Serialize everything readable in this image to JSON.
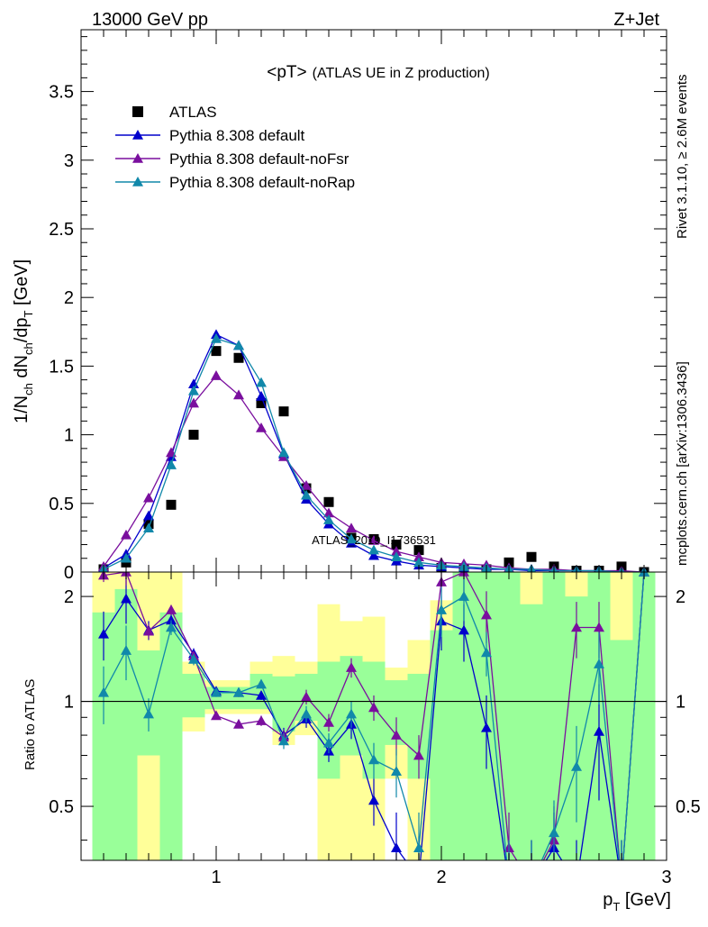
{
  "header": {
    "left": "13000 GeV pp",
    "right": "Z+Jet",
    "plot_title": "<pT>",
    "plot_subtitle": "(ATLAS UE in Z production)",
    "side_top": "Rivet 3.1.10, ≥ 2.6M events",
    "side_bottom": "mcplots.cern.ch [arXiv:1306.3436]",
    "watermark": "ATLAS_2019_I1736531"
  },
  "colors": {
    "atlas": "#000000",
    "default": "#0000cc",
    "noFsr": "#7a0f9e",
    "noRap": "#1188aa",
    "band_yellow": "#ffff99",
    "band_green": "#99ff99"
  },
  "chart_data": [
    {
      "type": "scatter",
      "title": "<pT> (ATLAS UE in Z production)",
      "xlabel": "p_T [GeV]",
      "ylabel": "1/N_ch dN_ch/dp_T [GeV]",
      "xlim": [
        0.4,
        3.0
      ],
      "ylim": [
        0,
        3.95
      ],
      "y_ticks": [
        "0",
        "0.5",
        "1",
        "1.5",
        "2",
        "2.5",
        "3",
        "3.5"
      ],
      "legend_position": "top-left",
      "x": [
        0.5,
        0.6,
        0.7,
        0.8,
        0.9,
        1.0,
        1.1,
        1.2,
        1.3,
        1.4,
        1.5,
        1.6,
        1.7,
        1.8,
        1.9,
        2.0,
        2.1,
        2.2,
        2.3,
        2.4,
        2.5,
        2.6,
        2.7,
        2.8,
        2.9
      ],
      "series": [
        {
          "name": "ATLAS",
          "marker": "square",
          "values": [
            0.02,
            0.07,
            0.35,
            0.49,
            1.0,
            1.61,
            1.56,
            1.23,
            1.17,
            0.61,
            0.51,
            0.25,
            0.24,
            0.2,
            0.16,
            0.03,
            0.02,
            0.02,
            0.07,
            0.11,
            0.04,
            0.01,
            0.01,
            0.04,
            0.0
          ]
        },
        {
          "name": "Pythia 8.308 default",
          "marker": "triangle",
          "values": [
            0.03,
            0.13,
            0.41,
            0.84,
            1.37,
            1.73,
            1.65,
            1.28,
            0.86,
            0.53,
            0.35,
            0.21,
            0.12,
            0.08,
            0.05,
            0.04,
            0.03,
            0.02,
            0.02,
            0.01,
            0.01,
            0.01,
            0.01,
            0.0,
            0.0
          ]
        },
        {
          "name": "Pythia 8.308 default-noFsr",
          "marker": "triangle",
          "values": [
            0.04,
            0.27,
            0.54,
            0.87,
            1.23,
            1.43,
            1.29,
            1.05,
            0.84,
            0.63,
            0.43,
            0.32,
            0.23,
            0.15,
            0.11,
            0.07,
            0.06,
            0.05,
            0.03,
            0.02,
            0.02,
            0.01,
            0.01,
            0.01,
            0.0
          ]
        },
        {
          "name": "Pythia 8.308 default-noRap",
          "marker": "triangle",
          "values": [
            0.02,
            0.1,
            0.32,
            0.78,
            1.32,
            1.7,
            1.65,
            1.38,
            0.87,
            0.56,
            0.38,
            0.24,
            0.16,
            0.11,
            0.07,
            0.05,
            0.04,
            0.03,
            0.02,
            0.02,
            0.01,
            0.01,
            0.01,
            0.0,
            0.0
          ]
        }
      ]
    },
    {
      "type": "line",
      "ylabel": "Ratio to ATLAS",
      "xlabel": "p_T [GeV]",
      "xlim": [
        0.4,
        3.0
      ],
      "ylim": [
        0.35,
        2.35
      ],
      "x_ticks": [
        "1",
        "2",
        "3"
      ],
      "y_ticks": [
        "0.5",
        "1",
        "2"
      ],
      "reference_line": 1,
      "x": [
        0.5,
        0.6,
        0.7,
        0.8,
        0.9,
        1.0,
        1.1,
        1.2,
        1.3,
        1.4,
        1.5,
        1.6,
        1.7,
        1.8,
        1.9,
        2.0,
        2.1,
        2.2,
        2.3,
        2.4,
        2.5,
        2.6,
        2.7,
        2.8,
        2.9
      ],
      "bands": [
        {
          "name": "yellow",
          "lo": [
            0.35,
            0.35,
            0.35,
            0.35,
            0.82,
            0.92,
            0.92,
            0.92,
            0.75,
            0.8,
            0.35,
            0.35,
            0.35,
            0.6,
            0.35,
            0.35,
            0.35,
            0.35,
            0.35,
            0.35,
            0.35,
            0.35,
            0.35,
            0.35,
            0.35
          ],
          "hi": [
            2.35,
            2.35,
            2.35,
            2.35,
            1.3,
            1.15,
            1.15,
            1.3,
            1.35,
            1.3,
            1.9,
            1.7,
            1.75,
            1.25,
            1.5,
            1.95,
            2.35,
            2.35,
            2.35,
            2.35,
            2.35,
            2.35,
            2.35,
            2.35,
            2.35
          ]
        },
        {
          "name": "green",
          "lo": [
            0.35,
            0.35,
            0.7,
            0.35,
            0.9,
            0.95,
            0.95,
            0.95,
            0.82,
            0.88,
            0.6,
            0.7,
            0.6,
            0.75,
            0.6,
            0.35,
            0.35,
            0.35,
            0.35,
            0.35,
            0.35,
            0.35,
            0.35,
            0.35,
            0.35
          ],
          "hi": [
            1.8,
            2.1,
            1.4,
            1.8,
            1.2,
            1.1,
            1.1,
            1.2,
            1.18,
            1.2,
            1.3,
            1.35,
            1.3,
            1.15,
            1.2,
            1.6,
            2.35,
            2.35,
            2.35,
            1.9,
            2.35,
            2.0,
            2.35,
            1.5,
            2.35
          ]
        }
      ],
      "series": [
        {
          "name": "Pythia 8.308 default",
          "values": [
            1.56,
            1.97,
            1.6,
            1.71,
            1.37,
            1.07,
            1.06,
            1.04,
            0.8,
            0.89,
            0.72,
            0.86,
            0.52,
            0.38,
            0.31,
            1.7,
            1.6,
            0.84,
            0.3,
            0.3,
            0.38,
            0.3,
            0.82,
            0.3,
            2.35
          ],
          "err": [
            0.25,
            0.3,
            0.1,
            0.08,
            0.05,
            0.03,
            0.03,
            0.03,
            0.04,
            0.05,
            0.05,
            0.08,
            0.08,
            0.1,
            0.1,
            0.3,
            0.3,
            0.2,
            0.1,
            0.1,
            0.1,
            0.1,
            0.3,
            0.1,
            0.1
          ]
        },
        {
          "name": "Pythia 8.308 default-noFsr",
          "values": [
            2.3,
            2.35,
            1.59,
            1.83,
            1.35,
            0.91,
            0.86,
            0.88,
            0.79,
            1.03,
            0.87,
            1.25,
            0.96,
            0.8,
            0.7,
            2.2,
            2.35,
            1.77,
            0.38,
            0.3,
            0.4,
            1.63,
            1.63,
            0.3,
            2.35
          ],
          "err": [
            0.1,
            0.2,
            0.08,
            0.06,
            0.04,
            0.02,
            0.02,
            0.03,
            0.04,
            0.05,
            0.05,
            0.08,
            0.08,
            0.1,
            0.1,
            0.2,
            0.3,
            0.3,
            0.1,
            0.1,
            0.1,
            0.3,
            0.3,
            0.1,
            0.1
          ]
        },
        {
          "name": "Pythia 8.308 default-noRap",
          "values": [
            1.06,
            1.4,
            0.92,
            1.63,
            1.32,
            1.06,
            1.06,
            1.12,
            0.77,
            0.92,
            0.76,
            0.92,
            0.68,
            0.63,
            0.38,
            1.83,
            2.0,
            1.38,
            0.3,
            0.3,
            0.42,
            0.65,
            1.28,
            0.3,
            2.35
          ],
          "err": [
            0.2,
            0.25,
            0.1,
            0.08,
            0.05,
            0.03,
            0.03,
            0.03,
            0.04,
            0.05,
            0.05,
            0.08,
            0.08,
            0.1,
            0.1,
            0.3,
            0.3,
            0.2,
            0.1,
            0.1,
            0.1,
            0.2,
            0.3,
            0.1,
            0.1
          ]
        }
      ]
    }
  ]
}
